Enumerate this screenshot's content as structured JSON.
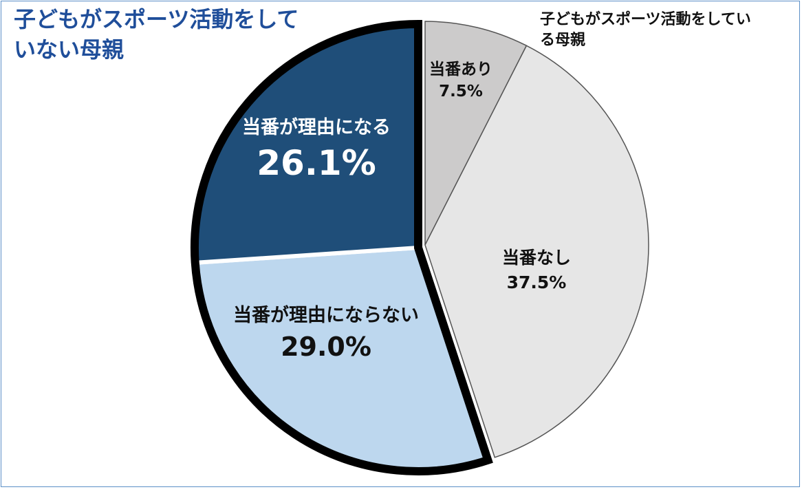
{
  "group_labels": {
    "not_active": "子どもがスポーツ活動をしていない母親",
    "active": "子どもがスポーツ活動をしている母親"
  },
  "colors": {
    "title_blue": "#1f4e9a",
    "dark_blue": "#1f4e79",
    "light_blue": "#bdd7ee",
    "gray_dark": "#cccbcb",
    "gray_light": "#e6e6e6"
  },
  "chart_data": {
    "type": "pie",
    "start_angle": "12 o'clock",
    "direction": "clockwise",
    "slices": [
      {
        "label": "当番あり",
        "value_text": "7.5%",
        "value": 7.5,
        "color": "#cccbcb",
        "group": "active",
        "label_color": "#111111"
      },
      {
        "label": "当番なし",
        "value_text": "37.5%",
        "value": 37.5,
        "color": "#e6e6e6",
        "group": "active",
        "label_color": "#111111"
      },
      {
        "label": "当番が理由にならない",
        "value_text": "29.0%",
        "value": 29.0,
        "color": "#bdd7ee",
        "group": "not_active",
        "label_color": "#111111"
      },
      {
        "label": "当番が理由になる",
        "value_text": "26.1%",
        "value": 26.1,
        "color": "#1f4e79",
        "group": "not_active",
        "label_color": "#ffffff"
      }
    ]
  }
}
